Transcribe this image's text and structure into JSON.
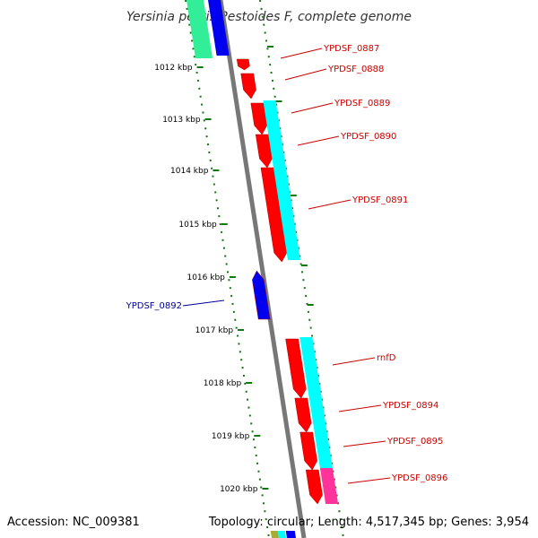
{
  "header": {
    "title": "Yersinia pestis Pestoides F, complete genome"
  },
  "footer": {
    "accession": "Accession: NC_009381",
    "topology": "Topology: circular; Length: 4,517,345 bp; Genes: 3,954"
  },
  "ruler": {
    "ticks": [
      "1012 kbp",
      "1013 kbp",
      "1014 kbp",
      "1015 kbp",
      "1016 kbp",
      "1017 kbp",
      "1018 kbp",
      "1019 kbp",
      "1020 kbp"
    ]
  },
  "genes": [
    {
      "id": "YPDSF_0887",
      "strand": "+",
      "color": "#cc0000"
    },
    {
      "id": "YPDSF_0888",
      "strand": "+",
      "color": "#cc0000"
    },
    {
      "id": "YPDSF_0889",
      "strand": "+",
      "color": "#cc0000"
    },
    {
      "id": "YPDSF_0890",
      "strand": "+",
      "color": "#cc0000"
    },
    {
      "id": "YPDSF_0891",
      "strand": "+",
      "color": "#cc0000"
    },
    {
      "id": "YPDSF_0892",
      "strand": "-",
      "color": "#000099"
    },
    {
      "id": "rnfD",
      "strand": "+",
      "color": "#cc0000"
    },
    {
      "id": "YPDSF_0894",
      "strand": "+",
      "color": "#cc0000"
    },
    {
      "id": "YPDSF_0895",
      "strand": "+",
      "color": "#cc0000"
    },
    {
      "id": "YPDSF_0896",
      "strand": "+",
      "color": "#cc0000"
    }
  ],
  "colors": {
    "cds_forward": "#ff0000",
    "cds_reverse": "#0000ee",
    "cog_cyan": "#00ffff",
    "cog_green": "#33ee99",
    "cog_pink": "#ff3399",
    "backbone": "#777777",
    "ruler_green": "#117711"
  }
}
